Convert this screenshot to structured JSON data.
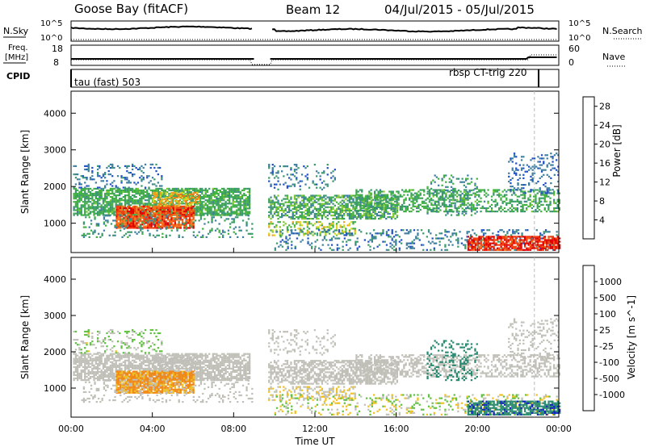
{
  "header": {
    "station": "Goose Bay (fitACF)",
    "beam": "Beam 12",
    "date_range": "04/Jul/2015 - 05/Jul/2015"
  },
  "top_panels": {
    "nsky_label": "N.Sky",
    "nsky_ticks": [
      "10^5",
      "10^0"
    ],
    "nsearch_label": "N.Search",
    "freq_label": "Freq.",
    "freq_unit": "[MHz]",
    "freq_ticks": [
      "18",
      "8"
    ],
    "nave_label": "Nave",
    "nave_ticks": [
      "60",
      "0"
    ],
    "cpid_label": "CPID",
    "cpid_left": "tau (fast) 503",
    "cpid_right": "rbsp CT-trig 220"
  },
  "chart_data": [
    {
      "type": "heatmap",
      "name": "power",
      "ylabel": "Slant Range [km]",
      "y_ticks": [
        "1000",
        "2000",
        "3000",
        "4000"
      ],
      "ylim": [
        200,
        4600
      ],
      "xlim_hours": [
        0,
        24
      ],
      "colorbar": {
        "title": "Power [dB]",
        "ticks": [
          "4",
          "8",
          "12",
          "16",
          "20",
          "24",
          "28"
        ],
        "range": [
          0,
          30
        ],
        "colors": [
          "#0018ff",
          "#2050c8",
          "#3f7fa0",
          "#3a9a6a",
          "#40b040",
          "#80c830",
          "#d8d820",
          "#f0a020",
          "#f07818",
          "#f04010",
          "#e00000"
        ]
      }
    },
    {
      "type": "heatmap",
      "name": "velocity",
      "ylabel": "Slant Range [km]",
      "y_ticks": [
        "1000",
        "2000",
        "3000",
        "4000"
      ],
      "ylim": [
        200,
        4600
      ],
      "xlim_hours": [
        0,
        24
      ],
      "colorbar": {
        "title": "Velocity [m s^-1]",
        "ticks": [
          "1000",
          "500",
          "100",
          "25",
          "-25",
          "-100",
          "-500",
          "-1000"
        ],
        "colors": [
          "#1020c0",
          "#2070a0",
          "#2aa060",
          "#60c040",
          "#c8c8c0",
          "#c8c8c0",
          "#f0c020",
          "#f08818",
          "#f04010",
          "#e00000"
        ]
      }
    }
  ],
  "x_axis": {
    "label": "Time UT",
    "ticks": [
      "00:00",
      "04:00",
      "08:00",
      "12:00",
      "16:00",
      "20:00",
      "00:00"
    ]
  }
}
